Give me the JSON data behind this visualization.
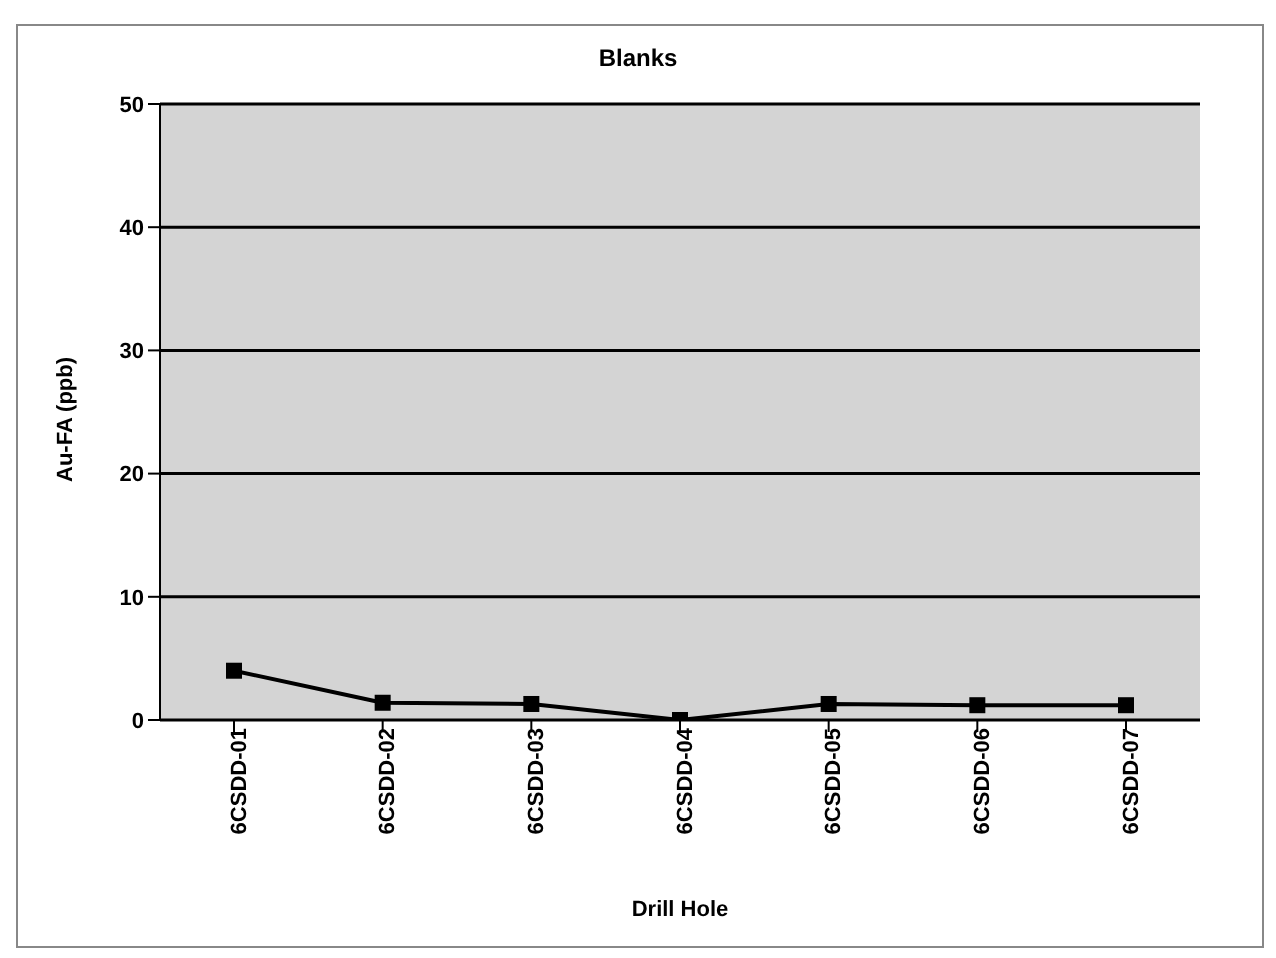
{
  "chart_data": {
    "type": "line",
    "title": "Blanks",
    "xlabel": "Drill Hole",
    "ylabel": "Au-FA (ppb)",
    "categories": [
      "6CSDD-01",
      "6CSDD-02",
      "6CSDD-03",
      "6CSDD-04",
      "6CSDD-05",
      "6CSDD-06",
      "6CSDD-07"
    ],
    "series": [
      {
        "color": "#000000",
        "values": [
          4,
          1.4,
          1.3,
          0,
          1.3,
          1.2,
          1.2
        ]
      }
    ],
    "ylim": [
      0,
      50
    ],
    "yticks": [
      0,
      10,
      20,
      30,
      40,
      50
    ],
    "grid": "y",
    "legend": false,
    "marker": "square",
    "line_style": "solid"
  }
}
